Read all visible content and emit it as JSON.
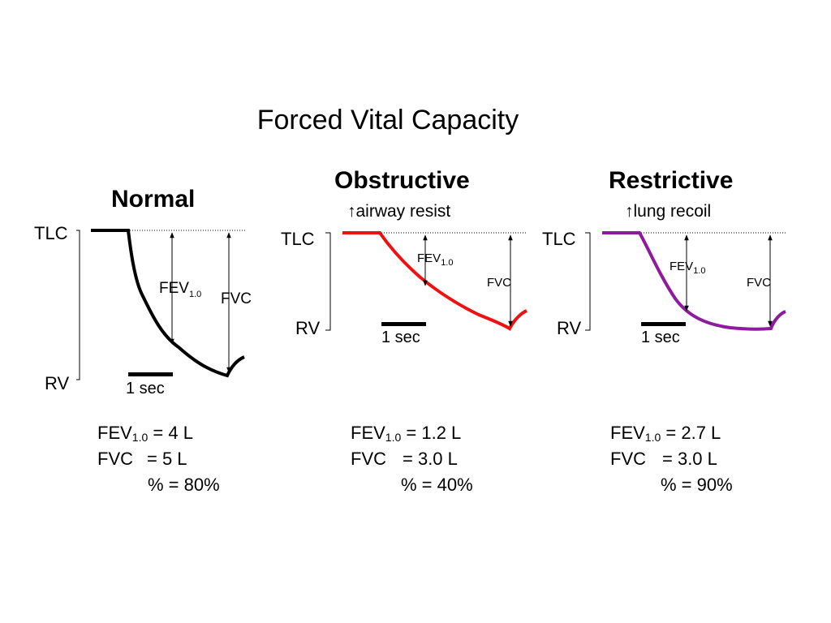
{
  "title": "Forced Vital Capacity",
  "up_arrow": "↑",
  "panels": [
    {
      "title": "Normal",
      "tlc_label": "TLC",
      "rv_label": "RV",
      "fev_label": "FEV",
      "fev_sub": "1.0",
      "fvc_label": "FVC",
      "time_label": "1 sec",
      "curve_color": "#000000",
      "stats": {
        "fev_name": "FEV",
        "fev_sub": "1.0",
        "fev_value": "= 4 L",
        "fvc_name": "FVC",
        "fvc_value": "= 5 L",
        "pct": "% = 80%"
      }
    },
    {
      "title": "Obstructive",
      "subtitle": "airway resist",
      "tlc_label": "TLC",
      "rv_label": "RV",
      "fev_label": "FEV",
      "fev_sub": "1.0",
      "fvc_label": "FVC",
      "time_label": "1 sec",
      "curve_color": "#ee1111",
      "stats": {
        "fev_name": "FEV",
        "fev_sub": "1.0",
        "fev_value": "= 1.2 L",
        "fvc_name": "FVC",
        "fvc_value": "= 3.0 L",
        "pct": "% = 40%"
      }
    },
    {
      "title": "Restrictive",
      "subtitle": "lung recoil",
      "tlc_label": "TLC",
      "rv_label": "RV",
      "fev_label": "FEV",
      "fev_sub": "1.0",
      "fvc_label": "FVC",
      "time_label": "1 sec",
      "curve_color": "#8e1a9e",
      "stats": {
        "fev_name": "FEV",
        "fev_sub": "1.0",
        "fev_value": "= 2.7 L",
        "fvc_name": "FVC",
        "fvc_value": "= 3.0 L",
        "pct": "% = 90%"
      }
    }
  ]
}
